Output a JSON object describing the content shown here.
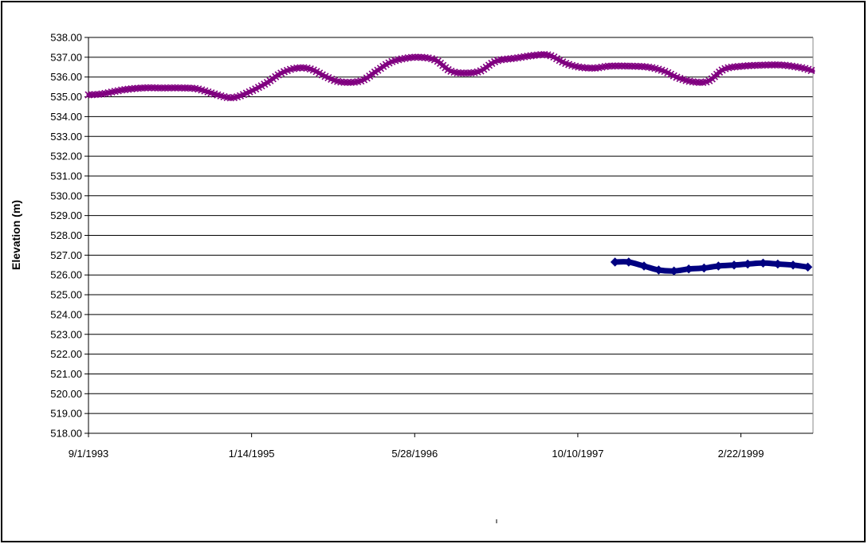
{
  "chart_data": {
    "type": "line",
    "title": "",
    "xlabel": "",
    "ylabel": "Elevation (m)",
    "x_type": "date",
    "xlim": [
      "1993-09-01",
      "1999-10-01"
    ],
    "ylim": [
      518,
      538
    ],
    "x_ticks": [
      "9/1/1993",
      "1/14/1995",
      "5/28/1996",
      "10/10/1997",
      "2/22/1999"
    ],
    "y_ticks": [
      "518.00",
      "519.00",
      "520.00",
      "521.00",
      "522.00",
      "523.00",
      "524.00",
      "525.00",
      "526.00",
      "527.00",
      "528.00",
      "529.00",
      "530.00",
      "531.00",
      "532.00",
      "533.00",
      "534.00",
      "535.00",
      "536.00",
      "537.00",
      "538.00"
    ],
    "grid": "horizontal",
    "legend": "none",
    "series": [
      {
        "color": "#800080",
        "marker": "x",
        "points": [
          [
            "1993-09-01",
            535.1
          ],
          [
            "1993-10-15",
            535.15
          ],
          [
            "1993-12-15",
            535.35
          ],
          [
            "1994-02-15",
            535.45
          ],
          [
            "1994-04-15",
            535.45
          ],
          [
            "1994-06-15",
            535.45
          ],
          [
            "1994-08-01",
            535.4
          ],
          [
            "1994-10-01",
            535.1
          ],
          [
            "1994-11-15",
            534.95
          ],
          [
            "1995-01-01",
            535.2
          ],
          [
            "1995-03-01",
            535.7
          ],
          [
            "1995-04-15",
            536.2
          ],
          [
            "1995-06-01",
            536.45
          ],
          [
            "1995-07-15",
            536.4
          ],
          [
            "1995-09-01",
            536.0
          ],
          [
            "1995-10-15",
            535.75
          ],
          [
            "1995-12-15",
            535.8
          ],
          [
            "1996-02-01",
            536.3
          ],
          [
            "1996-03-15",
            536.75
          ],
          [
            "1996-05-01",
            536.95
          ],
          [
            "1996-06-15",
            537.0
          ],
          [
            "1996-08-01",
            536.85
          ],
          [
            "1996-09-15",
            536.3
          ],
          [
            "1996-11-01",
            536.2
          ],
          [
            "1996-12-15",
            536.3
          ],
          [
            "1997-02-01",
            536.8
          ],
          [
            "1997-04-01",
            536.95
          ],
          [
            "1997-06-01",
            537.1
          ],
          [
            "1997-07-15",
            537.1
          ],
          [
            "1997-09-01",
            536.7
          ],
          [
            "1997-10-15",
            536.5
          ],
          [
            "1997-12-01",
            536.45
          ],
          [
            "1998-01-15",
            536.55
          ],
          [
            "1998-03-15",
            536.55
          ],
          [
            "1998-05-15",
            536.5
          ],
          [
            "1998-07-01",
            536.3
          ],
          [
            "1998-08-15",
            535.95
          ],
          [
            "1998-10-01",
            535.75
          ],
          [
            "1998-11-15",
            535.8
          ],
          [
            "1999-01-01",
            536.4
          ],
          [
            "1999-03-01",
            536.55
          ],
          [
            "1999-05-01",
            536.6
          ],
          [
            "1999-07-01",
            536.6
          ],
          [
            "1999-09-01",
            536.45
          ],
          [
            "1999-10-01",
            536.3
          ]
        ]
      },
      {
        "color": "#000080",
        "marker": "diamond",
        "points": [
          [
            "1998-02-01",
            526.65
          ],
          [
            "1998-03-15",
            526.65
          ],
          [
            "1998-05-01",
            526.45
          ],
          [
            "1998-06-15",
            526.25
          ],
          [
            "1998-08-01",
            526.2
          ],
          [
            "1998-09-15",
            526.3
          ],
          [
            "1998-11-01",
            526.35
          ],
          [
            "1998-12-15",
            526.45
          ],
          [
            "1999-02-01",
            526.5
          ],
          [
            "1999-03-15",
            526.55
          ],
          [
            "1999-05-01",
            526.6
          ],
          [
            "1999-06-15",
            526.55
          ],
          [
            "1999-08-01",
            526.5
          ],
          [
            "1999-09-15",
            526.4
          ]
        ]
      }
    ]
  }
}
